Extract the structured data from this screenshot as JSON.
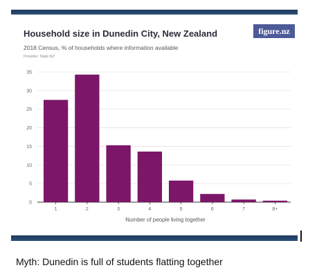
{
  "logo": "figure.nz",
  "caption": "Myth: Dunedin is full of students flatting together",
  "provider": "Provider: Stats NZ",
  "colors": {
    "bar": "#7b1668",
    "frame": "#2b4f7a",
    "logo_bg": "#4d5a99"
  },
  "chart_data": {
    "type": "bar",
    "title": "Household size in Dunedin City, New Zealand",
    "subtitle": "2018 Census, % of households where information available",
    "xlabel": "Number of people living together",
    "ylabel": "",
    "categories": [
      "1",
      "2",
      "3",
      "4",
      "5",
      "6",
      "7",
      "8+"
    ],
    "values": [
      27.5,
      34.3,
      15.3,
      13.6,
      5.8,
      2.2,
      0.7,
      0.4
    ],
    "ylim": [
      0,
      35
    ],
    "yticks": [
      "0",
      "5",
      "10",
      "15",
      "20",
      "25",
      "30",
      "35"
    ],
    "grid": true
  }
}
